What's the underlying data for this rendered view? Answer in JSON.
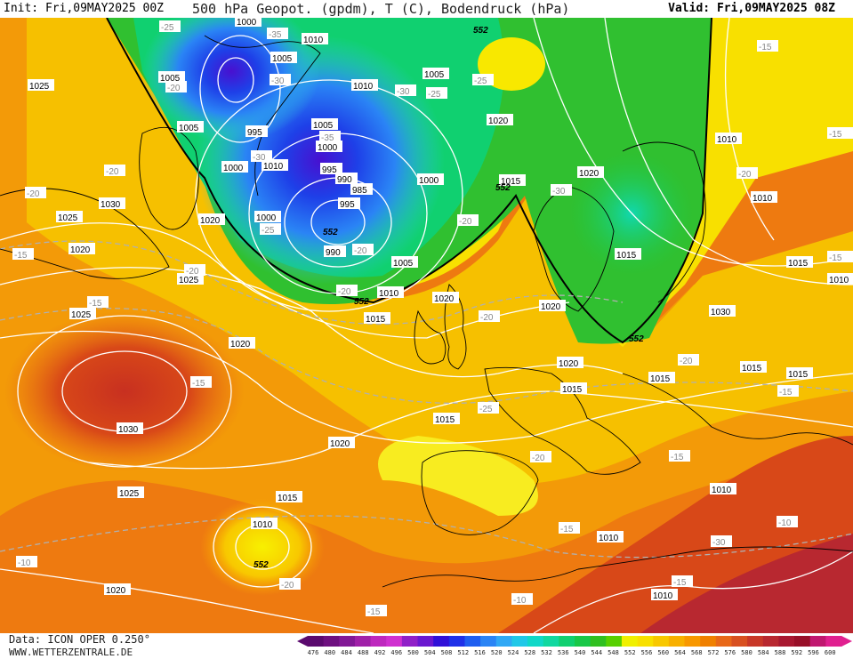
{
  "header": {
    "init": "Init: Fri,09MAY2025 00Z",
    "title": "500 hPa Geopot. (gpdm), T (C), Bodendruck (hPa)",
    "valid": "Valid: Fri,09MAY2025 08Z"
  },
  "footer": {
    "data_source": "Data: ICON OPER 0.250°",
    "website": "WWW.WETTERZENTRALE.DE"
  },
  "colorbar": {
    "ticks": [
      "476",
      "480",
      "484",
      "488",
      "492",
      "496",
      "500",
      "504",
      "508",
      "512",
      "516",
      "520",
      "524",
      "528",
      "532",
      "536",
      "540",
      "544",
      "548",
      "552",
      "556",
      "560",
      "564",
      "568",
      "572",
      "576",
      "580",
      "584",
      "588",
      "592",
      "596",
      "600"
    ],
    "colors": [
      "#5a0a6e",
      "#6e1080",
      "#821896",
      "#a020a8",
      "#be28be",
      "#d030d0",
      "#9020c8",
      "#6a18d0",
      "#3010d8",
      "#1e30e8",
      "#1e5ef0",
      "#2a84f5",
      "#30a8f5",
      "#20c8e8",
      "#10d8c8",
      "#10d8a0",
      "#10d070",
      "#18c848",
      "#30c020",
      "#58d000",
      "#f0f000",
      "#f8e000",
      "#f8c800",
      "#f8b000",
      "#f89800",
      "#f08000",
      "#e86818",
      "#d85020",
      "#c83828",
      "#b82830",
      "#a81830",
      "#981028",
      "#c01870",
      "#e02090"
    ]
  },
  "pressure_labels": [
    "1000",
    "1005",
    "1010",
    "1025",
    "1005",
    "1005",
    "1000",
    "1010",
    "1005",
    "1010",
    "1000",
    "995",
    "1000",
    "995",
    "990",
    "985",
    "1000",
    "1010",
    "1020",
    "1015",
    "1020",
    "1005",
    "1025",
    "1030",
    "1020",
    "1025",
    "1010",
    "1015",
    "1020",
    "1020",
    "1030",
    "1020",
    "1020",
    "1015",
    "1015",
    "1025",
    "1015",
    "1010",
    "1015",
    "1010",
    "1010",
    "1020",
    "1025",
    "1030",
    "1015",
    "1020",
    "1010",
    "1015",
    "1010",
    "1015",
    "1010",
    "1015",
    "1020",
    "995",
    "990",
    "1005"
  ],
  "temperature_labels": [
    "-25",
    "-35",
    "-30",
    "-30",
    "-35",
    "-25",
    "-30",
    "-25",
    "-15",
    "-20",
    "-20",
    "-20",
    "-25",
    "-15",
    "-15",
    "-20",
    "-20",
    "-20",
    "-25",
    "-15",
    "-20",
    "-20",
    "-15",
    "-15",
    "-10",
    "-10",
    "-15",
    "-15",
    "-15",
    "-20",
    "-20",
    "-10",
    "-30",
    "-20",
    "-30",
    "-15",
    "-20",
    "-15"
  ],
  "height_labels": [
    "552",
    "552",
    "552",
    "552",
    "552",
    "552"
  ],
  "map_colors": {
    "ocean_warm": "#f08010",
    "orange_mid": "#f8a000",
    "yellow": "#f8e000",
    "green": "#20c840",
    "blue_core": "#1e5ef0",
    "red_high": "#d84018"
  }
}
